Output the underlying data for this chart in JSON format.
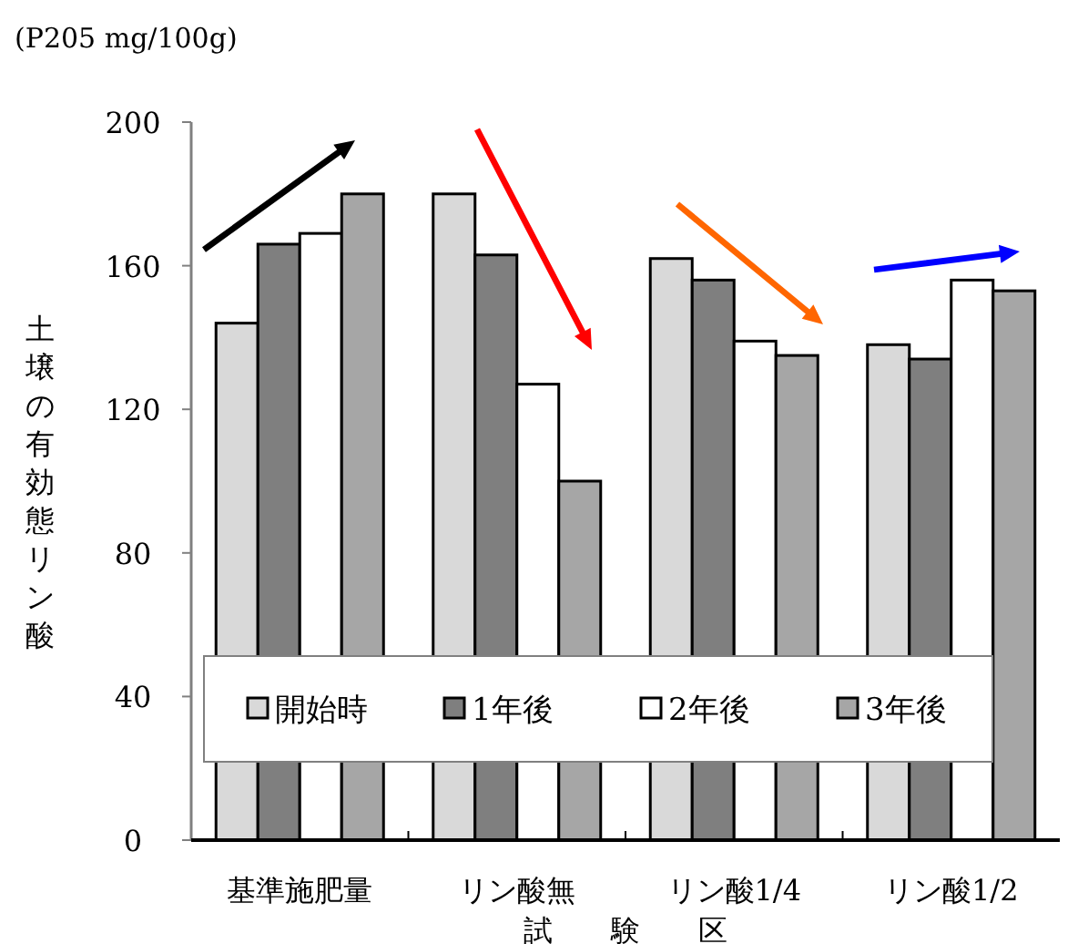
{
  "chart_data": {
    "type": "bar",
    "categories": [
      "基準施肥量",
      "リン酸無",
      "リン酸1/4",
      "リン酸1/2"
    ],
    "xlabel": "試　　験　　区",
    "ylabel": "土壌の有効態リン酸",
    "series": [
      {
        "name": "開始時",
        "color": "#d9d9d9",
        "values": [
          144,
          180,
          162,
          138
        ]
      },
      {
        "name": "1年後",
        "color": "#7f7f7f",
        "values": [
          166,
          163,
          156,
          134
        ]
      },
      {
        "name": "2年後",
        "color": "#ffffff",
        "values": [
          169,
          127,
          139,
          156
        ]
      },
      {
        "name": "3年後",
        "color": "#a6a6a6",
        "values": [
          180,
          100,
          135,
          153
        ]
      }
    ],
    "ylim": [
      0,
      200
    ],
    "yticks": [
      0,
      40,
      80,
      120,
      160,
      200
    ],
    "grid": false,
    "legend": "bottom",
    "annotations": [
      "(P205 mg/100g)"
    ]
  }
}
